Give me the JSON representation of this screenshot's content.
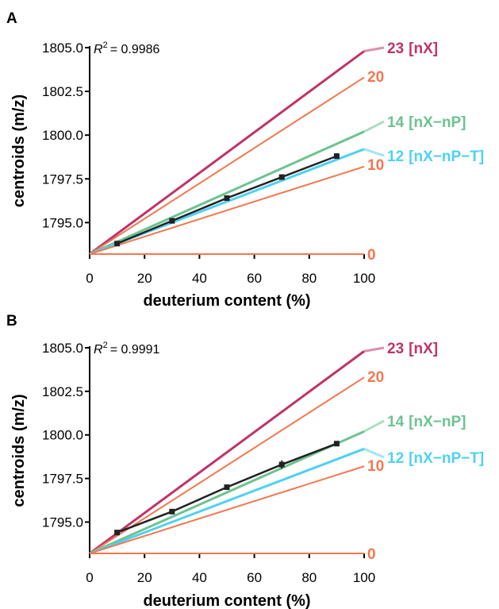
{
  "chart_data": [
    {
      "panel": "A",
      "type": "line",
      "xlabel": "deuterium content (%)",
      "ylabel": "centroids (m/z)",
      "xlim": [
        0,
        100
      ],
      "ylim": [
        1793.2,
        1805.0
      ],
      "xticks": [
        "0",
        "20",
        "40",
        "60",
        "80",
        "100"
      ],
      "yticks": [
        "1795.0",
        "1797.5",
        "1800.0",
        "1802.5",
        "1805.0"
      ],
      "r2_value": "= 0.9986",
      "theory_lines": [
        {
          "label": "23",
          "suffix": "[nX]",
          "color": "#c0336a",
          "start": 1793.2,
          "end": 1804.8
        },
        {
          "label": "20",
          "suffix": "",
          "color": "#f4774f",
          "start": 1793.2,
          "end": 1803.3
        },
        {
          "label": "14",
          "suffix": "[nX−nP]",
          "color": "#6cc390",
          "start": 1793.2,
          "end": 1800.2
        },
        {
          "label": "12",
          "suffix": "[nX−nP−T]",
          "color": "#4ed1f2",
          "start": 1793.2,
          "end": 1799.2
        },
        {
          "label": "10",
          "suffix": "",
          "color": "#f4774f",
          "start": 1793.2,
          "end": 1798.2
        },
        {
          "label": "0",
          "suffix": "",
          "color": "#f4774f",
          "start": 1793.2,
          "end": 1793.2
        }
      ],
      "measured": {
        "x": [
          10,
          30,
          50,
          70,
          90
        ],
        "y": [
          1793.8,
          1795.1,
          1796.4,
          1797.6,
          1798.8
        ],
        "err": [
          0.1,
          0.15,
          0.1,
          0.15,
          0.15
        ]
      }
    },
    {
      "panel": "B",
      "type": "line",
      "xlabel": "deuterium content (%)",
      "ylabel": "centroids (m/z)",
      "xlim": [
        0,
        100
      ],
      "ylim": [
        1793.2,
        1805.0
      ],
      "xticks": [
        "0",
        "20",
        "40",
        "60",
        "80",
        "100"
      ],
      "yticks": [
        "1795.0",
        "1797.5",
        "1800.0",
        "1802.5",
        "1805.0"
      ],
      "r2_value": "= 0.9991",
      "theory_lines": [
        {
          "label": "23",
          "suffix": "[nX]",
          "color": "#c0336a",
          "start": 1793.2,
          "end": 1804.8
        },
        {
          "label": "20",
          "suffix": "",
          "color": "#f4774f",
          "start": 1793.2,
          "end": 1803.3
        },
        {
          "label": "14",
          "suffix": "[nX−nP]",
          "color": "#6cc390",
          "start": 1793.2,
          "end": 1800.2
        },
        {
          "label": "12",
          "suffix": "[nX−nP−T]",
          "color": "#4ed1f2",
          "start": 1793.2,
          "end": 1799.2
        },
        {
          "label": "10",
          "suffix": "",
          "color": "#f4774f",
          "start": 1793.2,
          "end": 1798.2
        },
        {
          "label": "0",
          "suffix": "",
          "color": "#f4774f",
          "start": 1793.2,
          "end": 1793.2
        }
      ],
      "measured": {
        "x": [
          10,
          30,
          50,
          70,
          90
        ],
        "y": [
          1794.4,
          1795.6,
          1797.0,
          1798.3,
          1799.5
        ],
        "err": [
          0.1,
          0.1,
          0.1,
          0.25,
          0.1
        ]
      }
    }
  ]
}
